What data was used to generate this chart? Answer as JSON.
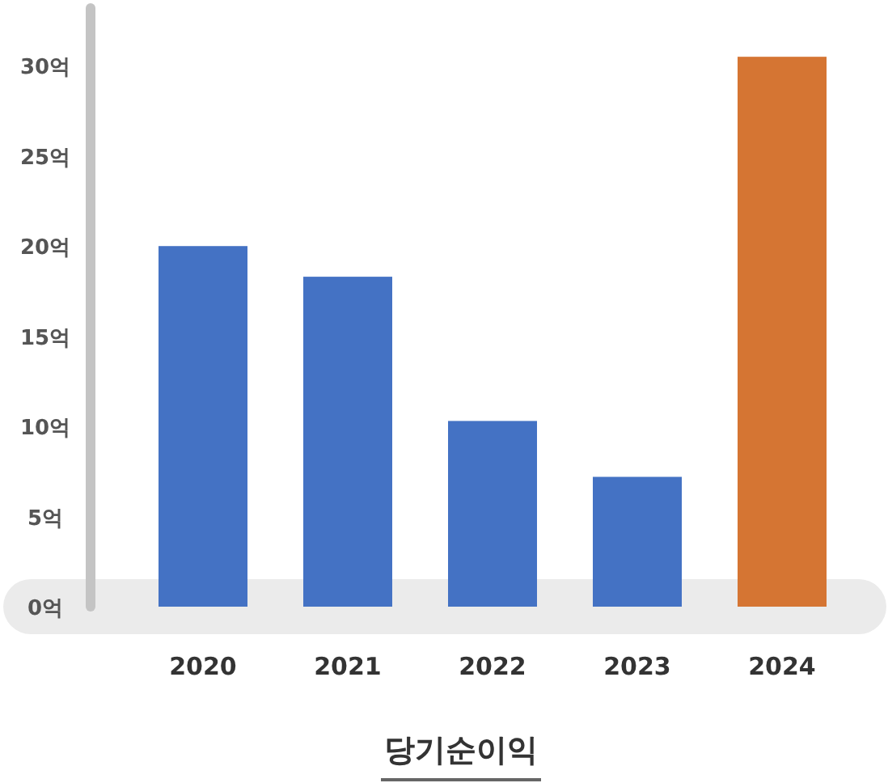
{
  "chart_data": {
    "type": "bar",
    "title": "당기순이익",
    "categories": [
      "2020",
      "2021",
      "2022",
      "2023",
      "2024"
    ],
    "values": [
      20,
      18.3,
      10.3,
      7.2,
      30.5
    ],
    "colors": [
      "#4472c4",
      "#4472c4",
      "#4472c4",
      "#4472c4",
      "#d57533"
    ],
    "ylim": [
      0,
      33.2
    ],
    "yticks": [
      {
        "value": 0,
        "label": "0억"
      },
      {
        "value": 5,
        "label": "5억"
      },
      {
        "value": 10,
        "label": "10억"
      },
      {
        "value": 15,
        "label": "15억"
      },
      {
        "value": 20,
        "label": "20억"
      },
      {
        "value": 25,
        "label": "25억"
      },
      {
        "value": 30,
        "label": "30억"
      }
    ],
    "grid": false
  }
}
